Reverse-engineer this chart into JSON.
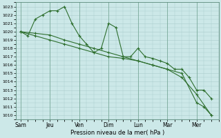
{
  "background_color": "#cce8e8",
  "grid_color": "#aacccc",
  "line_color": "#2d6e2d",
  "marker_color": "#2d6e2d",
  "yticks": [
    1010,
    1011,
    1012,
    1013,
    1014,
    1015,
    1016,
    1017,
    1018,
    1019,
    1020,
    1021,
    1022,
    1023
  ],
  "xlabel": "Pression niveau de la mer( hPa )",
  "day_labels": [
    "Sam",
    "Jeu",
    "Ven",
    "Dim",
    "Lun",
    "Mar",
    "Mer"
  ],
  "day_positions": [
    0,
    2,
    4,
    6,
    8,
    10,
    12
  ],
  "series1_x": [
    0,
    0.5,
    1,
    1.5,
    2,
    2.5,
    3,
    3.5,
    4,
    4.5,
    5,
    5.5,
    6,
    6.5,
    7,
    7.5,
    8,
    8.5,
    9,
    9.5,
    10,
    10.5,
    11,
    11.5,
    12,
    12.5,
    13
  ],
  "series1_y": [
    1020,
    1019.5,
    1021.5,
    1022,
    1022.5,
    1022.5,
    1023,
    1021,
    1019.5,
    1018.5,
    1017.5,
    1018,
    1021,
    1020.5,
    1017,
    1017,
    1018,
    1017,
    1016.8,
    1016.5,
    1016.2,
    1015.5,
    1015.5,
    1014.5,
    1013,
    1013,
    1012
  ],
  "series2_x": [
    0,
    1,
    2,
    3,
    4,
    5,
    6,
    7,
    8,
    9,
    10,
    11,
    12,
    12.5,
    13
  ],
  "series2_y": [
    1020,
    1019.8,
    1019.6,
    1019,
    1018.5,
    1018,
    1017.5,
    1017,
    1016.5,
    1016,
    1015.5,
    1015,
    1011.5,
    1011,
    1010
  ],
  "series3_x": [
    0,
    1,
    2,
    3,
    4,
    5,
    6,
    7,
    8,
    9,
    10,
    11,
    12,
    13
  ],
  "series3_y": [
    1020,
    1019.5,
    1019,
    1018.5,
    1018,
    1017.5,
    1017,
    1016.8,
    1016.5,
    1016,
    1015.5,
    1014.5,
    1012.5,
    1010
  ]
}
